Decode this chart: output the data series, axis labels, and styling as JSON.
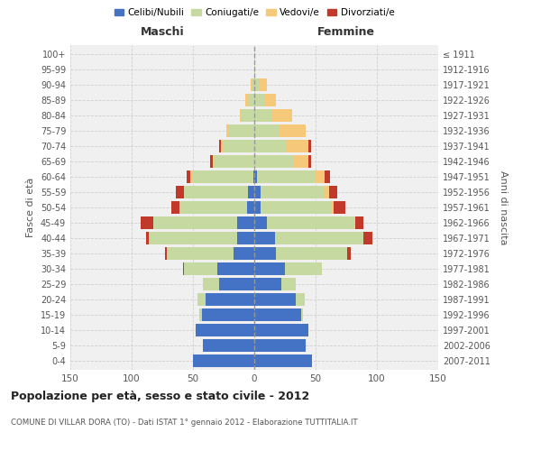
{
  "age_groups": [
    "0-4",
    "5-9",
    "10-14",
    "15-19",
    "20-24",
    "25-29",
    "30-34",
    "35-39",
    "40-44",
    "45-49",
    "50-54",
    "55-59",
    "60-64",
    "65-69",
    "70-74",
    "75-79",
    "80-84",
    "85-89",
    "90-94",
    "95-99",
    "100+"
  ],
  "birth_years": [
    "2007-2011",
    "2002-2006",
    "1997-2001",
    "1992-1996",
    "1987-1991",
    "1982-1986",
    "1977-1981",
    "1972-1976",
    "1967-1971",
    "1962-1966",
    "1957-1961",
    "1952-1956",
    "1947-1951",
    "1942-1946",
    "1937-1941",
    "1932-1936",
    "1927-1931",
    "1922-1926",
    "1917-1921",
    "1912-1916",
    "≤ 1911"
  ],
  "males": {
    "celibe": [
      50,
      42,
      48,
      43,
      40,
      29,
      30,
      17,
      14,
      14,
      6,
      5,
      1,
      0,
      0,
      0,
      0,
      0,
      0,
      0,
      0
    ],
    "coniugato": [
      0,
      0,
      0,
      2,
      6,
      13,
      27,
      54,
      72,
      68,
      55,
      52,
      50,
      33,
      25,
      21,
      10,
      5,
      2,
      0,
      0
    ],
    "vedovo": [
      0,
      0,
      0,
      0,
      0,
      0,
      0,
      0,
      0,
      0,
      0,
      0,
      1,
      1,
      2,
      2,
      2,
      2,
      1,
      0,
      0
    ],
    "divorziato": [
      0,
      0,
      0,
      0,
      0,
      0,
      1,
      2,
      2,
      11,
      7,
      7,
      3,
      2,
      2,
      0,
      0,
      0,
      0,
      0,
      0
    ]
  },
  "females": {
    "nubile": [
      47,
      42,
      44,
      38,
      34,
      22,
      25,
      18,
      17,
      10,
      5,
      5,
      2,
      0,
      0,
      0,
      0,
      0,
      0,
      0,
      0
    ],
    "coniugata": [
      0,
      0,
      0,
      2,
      7,
      12,
      30,
      58,
      72,
      72,
      58,
      52,
      47,
      32,
      26,
      20,
      15,
      8,
      4,
      1,
      0
    ],
    "vedova": [
      0,
      0,
      0,
      0,
      0,
      0,
      0,
      0,
      0,
      0,
      2,
      4,
      8,
      12,
      18,
      22,
      16,
      10,
      6,
      0,
      0
    ],
    "divorziata": [
      0,
      0,
      0,
      0,
      0,
      0,
      0,
      3,
      7,
      7,
      9,
      7,
      5,
      2,
      2,
      0,
      0,
      0,
      0,
      0,
      0
    ]
  },
  "colors": {
    "celibe": "#4472c4",
    "coniugato": "#c5d9a0",
    "vedovo": "#f5c87a",
    "divorziato": "#c0392b"
  },
  "title": "Popolazione per età, sesso e stato civile - 2012",
  "subtitle": "COMUNE DI VILLAR DORA (TO) - Dati ISTAT 1° gennaio 2012 - Elaborazione TUTTITALIA.IT",
  "xlabel_left": "Maschi",
  "xlabel_right": "Femmine",
  "ylabel_left": "Fasce di età",
  "ylabel_right": "Anni di nascita",
  "xlim": 150,
  "bg_color": "#ffffff",
  "plot_bg": "#f0f0f0",
  "grid_color": "#cccccc"
}
